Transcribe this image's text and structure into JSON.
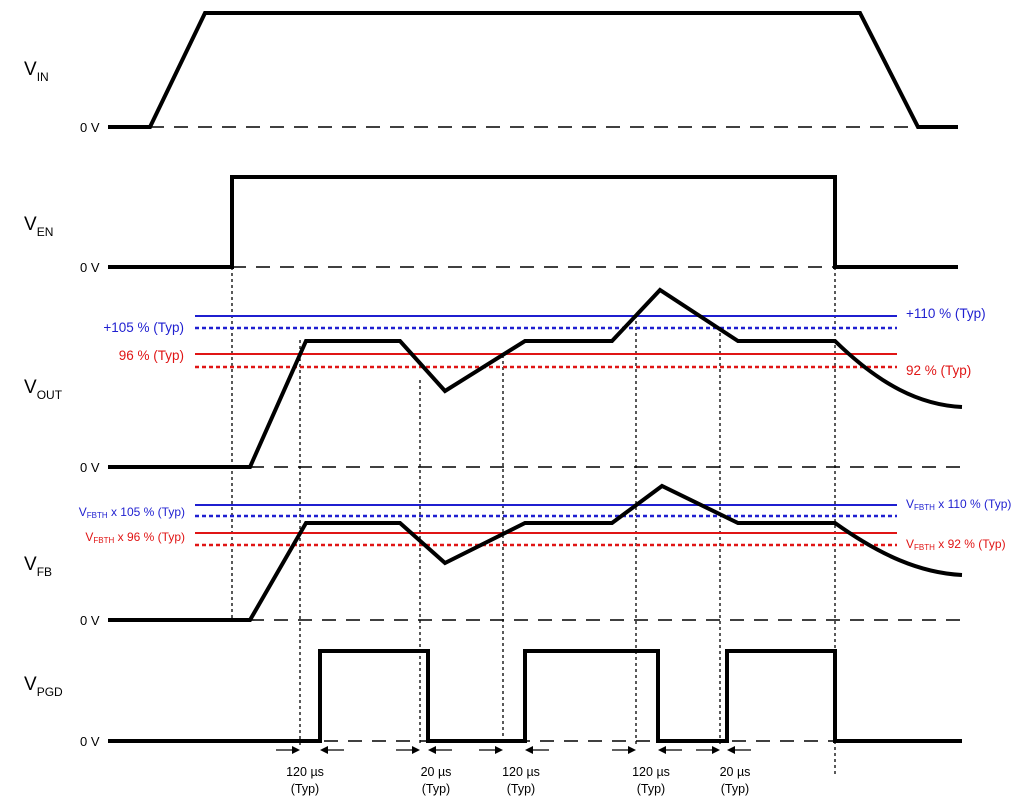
{
  "signals": {
    "vin": {
      "main": "V",
      "sub": "IN"
    },
    "ven": {
      "main": "V",
      "sub": "EN"
    },
    "vout": {
      "main": "V",
      "sub": "OUT"
    },
    "vfb": {
      "main": "V",
      "sub": "FB"
    },
    "vpgd": {
      "main": "V",
      "sub": "PGD"
    }
  },
  "zero_label": "0 V",
  "vout_thresholds": {
    "ov_rising": "+105 % (Typ)",
    "ov_falling": "+110 % (Typ)",
    "uv_rising": "96 % (Typ)",
    "uv_falling": "92 % (Typ)"
  },
  "vfb_thresholds": {
    "prefix": "V",
    "sub": "FBTH",
    "ov_rising": " x 105 % (Typ)",
    "ov_falling": " x 110 % (Typ)",
    "uv_rising": " x 96 % (Typ)",
    "uv_falling": " x 92 % (Typ)"
  },
  "timings": [
    {
      "value": "120 µs",
      "note": "(Typ)"
    },
    {
      "value": "20 µs",
      "note": "(Typ)"
    },
    {
      "value": "120 µs",
      "note": "(Typ)"
    },
    {
      "value": "120 µs",
      "note": "(Typ)"
    },
    {
      "value": "20 µs",
      "note": "(Typ)"
    }
  ],
  "colors": {
    "ov": "#1f1fd0",
    "uv": "#e01515",
    "trace": "#000000"
  }
}
